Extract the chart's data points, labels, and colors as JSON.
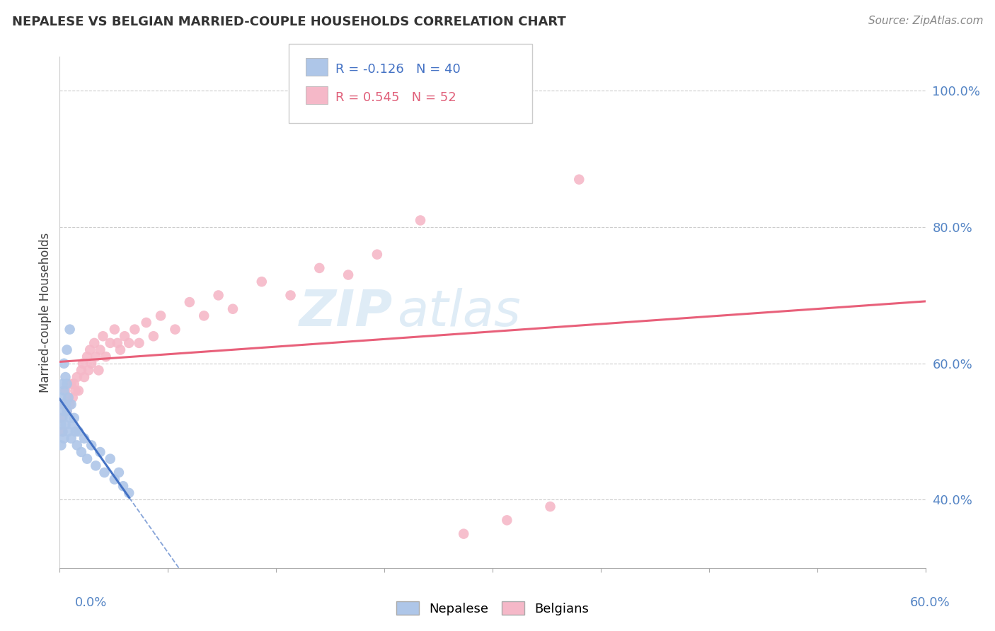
{
  "title": "NEPALESE VS BELGIAN MARRIED-COUPLE HOUSEHOLDS CORRELATION CHART",
  "source": "Source: ZipAtlas.com",
  "ylabel": "Married-couple Households",
  "ylabel_ticks": [
    "40.0%",
    "60.0%",
    "80.0%",
    "100.0%"
  ],
  "ylabel_tick_vals": [
    0.4,
    0.6,
    0.8,
    1.0
  ],
  "xlim": [
    0.0,
    0.6
  ],
  "ylim": [
    0.3,
    1.05
  ],
  "nepalese_R": -0.126,
  "nepalese_N": 40,
  "belgian_R": 0.545,
  "belgian_N": 52,
  "nepalese_color": "#aec6e8",
  "belgian_color": "#f5b8c8",
  "nepalese_line_color": "#4472c4",
  "belgian_line_color": "#e8607a",
  "legend_nepalese": "Nepalese",
  "legend_belgians": "Belgians",
  "nepalese_x": [
    0.001,
    0.001,
    0.001,
    0.002,
    0.002,
    0.002,
    0.002,
    0.003,
    0.003,
    0.003,
    0.003,
    0.004,
    0.004,
    0.004,
    0.005,
    0.005,
    0.005,
    0.006,
    0.006,
    0.007,
    0.007,
    0.008,
    0.008,
    0.009,
    0.01,
    0.011,
    0.012,
    0.013,
    0.015,
    0.017,
    0.019,
    0.022,
    0.025,
    0.028,
    0.031,
    0.035,
    0.038,
    0.041,
    0.044,
    0.048
  ],
  "nepalese_y": [
    0.51,
    0.55,
    0.48,
    0.57,
    0.52,
    0.5,
    0.54,
    0.6,
    0.56,
    0.53,
    0.49,
    0.58,
    0.54,
    0.51,
    0.62,
    0.57,
    0.53,
    0.55,
    0.5,
    0.65,
    0.52,
    0.54,
    0.49,
    0.51,
    0.52,
    0.5,
    0.48,
    0.5,
    0.47,
    0.49,
    0.46,
    0.48,
    0.45,
    0.47,
    0.44,
    0.46,
    0.43,
    0.44,
    0.42,
    0.41
  ],
  "belgian_x": [
    0.001,
    0.002,
    0.003,
    0.004,
    0.005,
    0.006,
    0.007,
    0.008,
    0.009,
    0.01,
    0.011,
    0.012,
    0.013,
    0.015,
    0.016,
    0.017,
    0.019,
    0.02,
    0.021,
    0.022,
    0.024,
    0.025,
    0.027,
    0.028,
    0.03,
    0.032,
    0.035,
    0.038,
    0.04,
    0.042,
    0.045,
    0.048,
    0.052,
    0.055,
    0.06,
    0.065,
    0.07,
    0.08,
    0.09,
    0.1,
    0.11,
    0.12,
    0.14,
    0.16,
    0.18,
    0.2,
    0.22,
    0.25,
    0.28,
    0.31,
    0.34,
    0.36
  ],
  "belgian_y": [
    0.52,
    0.5,
    0.54,
    0.56,
    0.53,
    0.55,
    0.54,
    0.57,
    0.55,
    0.57,
    0.56,
    0.58,
    0.56,
    0.59,
    0.6,
    0.58,
    0.61,
    0.59,
    0.62,
    0.6,
    0.63,
    0.61,
    0.59,
    0.62,
    0.64,
    0.61,
    0.63,
    0.65,
    0.63,
    0.62,
    0.64,
    0.63,
    0.65,
    0.63,
    0.66,
    0.64,
    0.67,
    0.65,
    0.69,
    0.67,
    0.7,
    0.68,
    0.72,
    0.7,
    0.74,
    0.73,
    0.76,
    0.81,
    0.35,
    0.37,
    0.39,
    0.87
  ]
}
